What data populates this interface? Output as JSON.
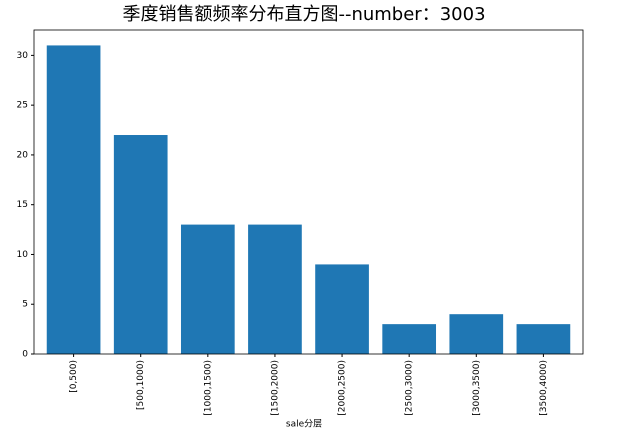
{
  "chart_data": {
    "type": "bar",
    "title": "季度销售额频率分布直方图--number：3003",
    "x_label": "sale分层",
    "categories": [
      "[0,500)",
      "[500,1000)",
      "[1000,1500)",
      "[1500,2000)",
      "[2000,2500)",
      "[2500,3000)",
      "[3000,3500)",
      "[3500,4000)"
    ],
    "values": [
      31,
      22,
      13,
      13,
      9,
      3,
      4,
      3
    ],
    "color": "#1f77b4",
    "ylim": [
      0,
      32.55
    ],
    "yticks": [
      0,
      5,
      10,
      15,
      20,
      25,
      30
    ],
    "grid": false
  }
}
